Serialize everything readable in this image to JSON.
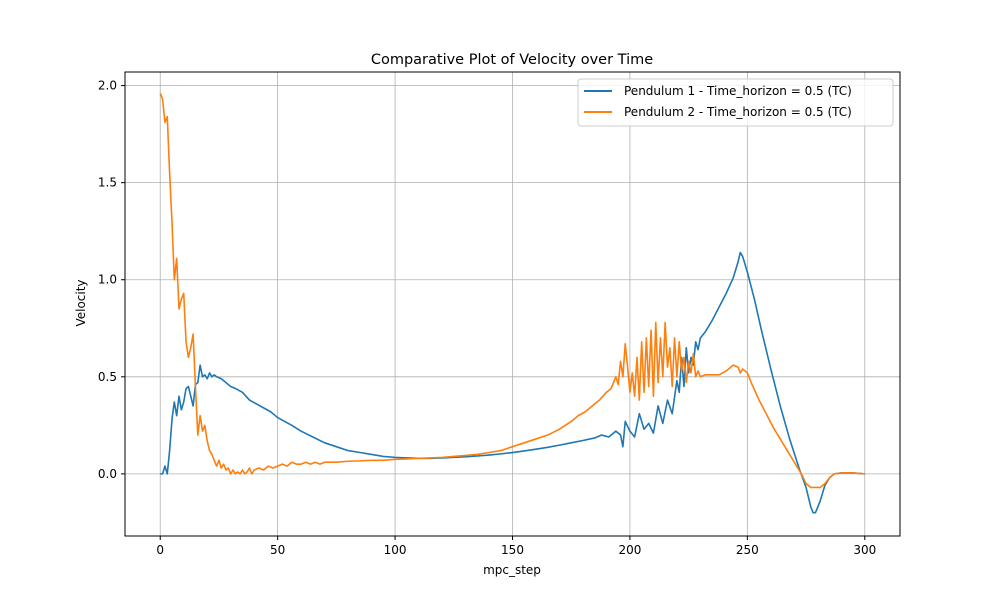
{
  "chart_data": {
    "type": "line",
    "title": "Comparative Plot of Velocity over Time",
    "xlabel": "mpc_step",
    "ylabel": "Velocity",
    "xlim": [
      -15,
      315
    ],
    "ylim": [
      -0.32,
      2.07
    ],
    "xticks": [
      0,
      50,
      100,
      150,
      200,
      250,
      300
    ],
    "yticks": [
      0.0,
      0.5,
      1.0,
      1.5,
      2.0
    ],
    "xtick_labels": [
      "0",
      "50",
      "100",
      "150",
      "200",
      "250",
      "300"
    ],
    "ytick_labels": [
      "0.0",
      "0.5",
      "1.0",
      "1.5",
      "2.0"
    ],
    "grid": true,
    "legend_position": "top-right",
    "series": [
      {
        "name": "Pendulum 1 - Time_horizon = 0.5 (TC)",
        "color": "#1f77b4",
        "points": [
          [
            0,
            0.0
          ],
          [
            1,
            0.0
          ],
          [
            2,
            0.04
          ],
          [
            3,
            0.0
          ],
          [
            4,
            0.12
          ],
          [
            5,
            0.28
          ],
          [
            6,
            0.37
          ],
          [
            7,
            0.3
          ],
          [
            8,
            0.4
          ],
          [
            9,
            0.33
          ],
          [
            10,
            0.37
          ],
          [
            11,
            0.44
          ],
          [
            12,
            0.45
          ],
          [
            13,
            0.4
          ],
          [
            14,
            0.35
          ],
          [
            15,
            0.46
          ],
          [
            16,
            0.47
          ],
          [
            17,
            0.56
          ],
          [
            18,
            0.5
          ],
          [
            19,
            0.51
          ],
          [
            20,
            0.49
          ],
          [
            21,
            0.52
          ],
          [
            22,
            0.5
          ],
          [
            23,
            0.51
          ],
          [
            24,
            0.5
          ],
          [
            26,
            0.49
          ],
          [
            28,
            0.47
          ],
          [
            30,
            0.45
          ],
          [
            32,
            0.44
          ],
          [
            35,
            0.42
          ],
          [
            38,
            0.38
          ],
          [
            41,
            0.36
          ],
          [
            44,
            0.34
          ],
          [
            47,
            0.32
          ],
          [
            50,
            0.29
          ],
          [
            53,
            0.27
          ],
          [
            56,
            0.25
          ],
          [
            60,
            0.22
          ],
          [
            65,
            0.19
          ],
          [
            70,
            0.16
          ],
          [
            75,
            0.14
          ],
          [
            80,
            0.12
          ],
          [
            85,
            0.11
          ],
          [
            90,
            0.1
          ],
          [
            95,
            0.09
          ],
          [
            100,
            0.085
          ],
          [
            105,
            0.082
          ],
          [
            110,
            0.08
          ],
          [
            115,
            0.08
          ],
          [
            120,
            0.082
          ],
          [
            125,
            0.085
          ],
          [
            130,
            0.088
          ],
          [
            135,
            0.092
          ],
          [
            140,
            0.097
          ],
          [
            145,
            0.103
          ],
          [
            150,
            0.11
          ],
          [
            155,
            0.118
          ],
          [
            160,
            0.127
          ],
          [
            165,
            0.137
          ],
          [
            170,
            0.148
          ],
          [
            175,
            0.16
          ],
          [
            180,
            0.172
          ],
          [
            185,
            0.185
          ],
          [
            188,
            0.2
          ],
          [
            191,
            0.19
          ],
          [
            194,
            0.22
          ],
          [
            196,
            0.2
          ],
          [
            197,
            0.14
          ],
          [
            198,
            0.27
          ],
          [
            200,
            0.22
          ],
          [
            202,
            0.19
          ],
          [
            204,
            0.31
          ],
          [
            206,
            0.23
          ],
          [
            208,
            0.26
          ],
          [
            210,
            0.21
          ],
          [
            212,
            0.35
          ],
          [
            214,
            0.26
          ],
          [
            216,
            0.38
          ],
          [
            218,
            0.31
          ],
          [
            220,
            0.48
          ],
          [
            221,
            0.42
          ],
          [
            222,
            0.6
          ],
          [
            223,
            0.45
          ],
          [
            224,
            0.65
          ],
          [
            225,
            0.52
          ],
          [
            226,
            0.6
          ],
          [
            227,
            0.56
          ],
          [
            228,
            0.68
          ],
          [
            229,
            0.64
          ],
          [
            230,
            0.7
          ],
          [
            232,
            0.73
          ],
          [
            235,
            0.79
          ],
          [
            238,
            0.86
          ],
          [
            241,
            0.93
          ],
          [
            244,
            1.01
          ],
          [
            246,
            1.09
          ],
          [
            247,
            1.14
          ],
          [
            248,
            1.12
          ],
          [
            250,
            1.04
          ],
          [
            253,
            0.9
          ],
          [
            256,
            0.74
          ],
          [
            260,
            0.54
          ],
          [
            264,
            0.35
          ],
          [
            268,
            0.18
          ],
          [
            272,
            0.03
          ],
          [
            275,
            -0.07
          ],
          [
            277,
            -0.17
          ],
          [
            278,
            -0.2
          ],
          [
            279,
            -0.2
          ],
          [
            281,
            -0.14
          ],
          [
            283,
            -0.06
          ],
          [
            285,
            -0.02
          ],
          [
            287,
            0.0
          ],
          [
            290,
            0.005
          ],
          [
            295,
            0.005
          ],
          [
            300,
            0.0
          ]
        ]
      },
      {
        "name": "Pendulum 2 - Time_horizon = 0.5 (TC)",
        "color": "#ff7f0e",
        "points": [
          [
            0,
            1.96
          ],
          [
            1,
            1.93
          ],
          [
            2,
            1.81
          ],
          [
            3,
            1.84
          ],
          [
            4,
            1.55
          ],
          [
            5,
            1.3
          ],
          [
            6,
            1.0
          ],
          [
            7,
            1.11
          ],
          [
            8,
            0.85
          ],
          [
            9,
            0.9
          ],
          [
            10,
            0.93
          ],
          [
            11,
            0.68
          ],
          [
            12,
            0.6
          ],
          [
            13,
            0.65
          ],
          [
            14,
            0.72
          ],
          [
            15,
            0.45
          ],
          [
            16,
            0.2
          ],
          [
            17,
            0.3
          ],
          [
            18,
            0.22
          ],
          [
            19,
            0.25
          ],
          [
            20,
            0.17
          ],
          [
            21,
            0.12
          ],
          [
            22,
            0.1
          ],
          [
            23,
            0.07
          ],
          [
            24,
            0.04
          ],
          [
            25,
            0.07
          ],
          [
            26,
            0.03
          ],
          [
            27,
            0.05
          ],
          [
            28,
            0.02
          ],
          [
            29,
            0.03
          ],
          [
            30,
            0.0
          ],
          [
            31,
            0.02
          ],
          [
            32,
            0.0
          ],
          [
            33,
            0.01
          ],
          [
            34,
            0.0
          ],
          [
            35,
            0.02
          ],
          [
            36,
            0.0
          ],
          [
            37,
            0.01
          ],
          [
            38,
            0.03
          ],
          [
            39,
            0.0
          ],
          [
            40,
            0.02
          ],
          [
            42,
            0.03
          ],
          [
            44,
            0.02
          ],
          [
            46,
            0.04
          ],
          [
            48,
            0.03
          ],
          [
            50,
            0.04
          ],
          [
            52,
            0.05
          ],
          [
            54,
            0.04
          ],
          [
            56,
            0.06
          ],
          [
            58,
            0.05
          ],
          [
            60,
            0.05
          ],
          [
            62,
            0.06
          ],
          [
            64,
            0.05
          ],
          [
            66,
            0.06
          ],
          [
            68,
            0.05
          ],
          [
            70,
            0.06
          ],
          [
            75,
            0.06
          ],
          [
            80,
            0.065
          ],
          [
            85,
            0.067
          ],
          [
            90,
            0.07
          ],
          [
            95,
            0.07
          ],
          [
            100,
            0.075
          ],
          [
            105,
            0.077
          ],
          [
            110,
            0.08
          ],
          [
            115,
            0.082
          ],
          [
            120,
            0.085
          ],
          [
            125,
            0.09
          ],
          [
            130,
            0.095
          ],
          [
            135,
            0.1
          ],
          [
            140,
            0.11
          ],
          [
            145,
            0.12
          ],
          [
            150,
            0.14
          ],
          [
            155,
            0.16
          ],
          [
            160,
            0.18
          ],
          [
            165,
            0.2
          ],
          [
            170,
            0.23
          ],
          [
            175,
            0.27
          ],
          [
            178,
            0.3
          ],
          [
            181,
            0.32
          ],
          [
            184,
            0.35
          ],
          [
            187,
            0.38
          ],
          [
            190,
            0.42
          ],
          [
            192,
            0.44
          ],
          [
            194,
            0.5
          ],
          [
            195,
            0.46
          ],
          [
            196,
            0.58
          ],
          [
            197,
            0.5
          ],
          [
            198,
            0.67
          ],
          [
            199,
            0.55
          ],
          [
            200,
            0.42
          ],
          [
            201,
            0.52
          ],
          [
            202,
            0.4
          ],
          [
            203,
            0.6
          ],
          [
            204,
            0.38
          ],
          [
            205,
            0.68
          ],
          [
            206,
            0.42
          ],
          [
            207,
            0.7
          ],
          [
            208,
            0.45
          ],
          [
            209,
            0.74
          ],
          [
            210,
            0.4
          ],
          [
            211,
            0.78
          ],
          [
            212,
            0.47
          ],
          [
            213,
            0.7
          ],
          [
            214,
            0.5
          ],
          [
            215,
            0.78
          ],
          [
            216,
            0.55
          ],
          [
            217,
            0.65
          ],
          [
            218,
            0.45
          ],
          [
            219,
            0.7
          ],
          [
            220,
            0.5
          ],
          [
            221,
            0.68
          ],
          [
            222,
            0.53
          ],
          [
            223,
            0.6
          ],
          [
            224,
            0.47
          ],
          [
            225,
            0.58
          ],
          [
            226,
            0.52
          ],
          [
            227,
            0.62
          ],
          [
            228,
            0.5
          ],
          [
            229,
            0.53
          ],
          [
            230,
            0.5
          ],
          [
            232,
            0.51
          ],
          [
            235,
            0.51
          ],
          [
            238,
            0.51
          ],
          [
            241,
            0.53
          ],
          [
            244,
            0.56
          ],
          [
            246,
            0.55
          ],
          [
            247,
            0.52
          ],
          [
            248,
            0.54
          ],
          [
            250,
            0.52
          ],
          [
            252,
            0.46
          ],
          [
            255,
            0.38
          ],
          [
            258,
            0.31
          ],
          [
            261,
            0.24
          ],
          [
            264,
            0.18
          ],
          [
            267,
            0.12
          ],
          [
            270,
            0.06
          ],
          [
            273,
            0.0
          ],
          [
            275,
            -0.05
          ],
          [
            277,
            -0.07
          ],
          [
            279,
            -0.07
          ],
          [
            281,
            -0.07
          ],
          [
            283,
            -0.05
          ],
          [
            285,
            -0.02
          ],
          [
            287,
            0.0
          ],
          [
            290,
            0.005
          ],
          [
            295,
            0.005
          ],
          [
            300,
            0.0
          ]
        ]
      }
    ]
  }
}
